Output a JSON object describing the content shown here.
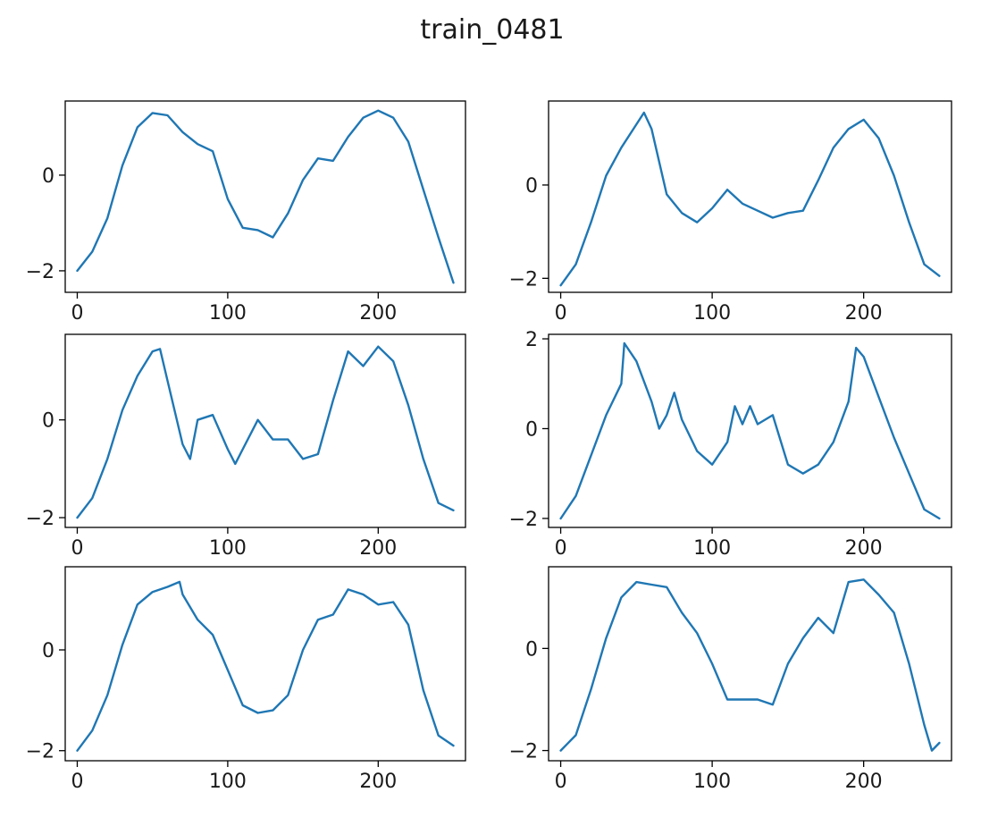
{
  "figure": {
    "suptitle": "train_0481",
    "line_color": "#1f77b4"
  },
  "chart_data": [
    {
      "type": "line",
      "xlim": [
        -8,
        258
      ],
      "ylim": [
        -2.45,
        1.55
      ],
      "xticks": [
        0,
        100,
        200
      ],
      "yticks": [
        -2,
        0
      ],
      "x": [
        0,
        10,
        20,
        30,
        40,
        50,
        60,
        70,
        80,
        90,
        100,
        110,
        120,
        130,
        140,
        150,
        160,
        170,
        180,
        190,
        200,
        210,
        220,
        230,
        240,
        250
      ],
      "y": [
        -2.0,
        -1.6,
        -0.9,
        0.2,
        1.0,
        1.3,
        1.25,
        0.9,
        0.65,
        0.5,
        -0.5,
        -1.1,
        -1.15,
        -1.3,
        -0.8,
        -0.1,
        0.35,
        0.3,
        0.8,
        1.2,
        1.35,
        1.2,
        0.7,
        -0.3,
        -1.3,
        -2.25
      ]
    },
    {
      "type": "line",
      "xlim": [
        -8,
        258
      ],
      "ylim": [
        -2.3,
        1.8
      ],
      "xticks": [
        0,
        100,
        200
      ],
      "yticks": [
        -2,
        0
      ],
      "x": [
        0,
        10,
        20,
        30,
        40,
        50,
        55,
        60,
        70,
        80,
        90,
        100,
        110,
        120,
        130,
        140,
        150,
        160,
        170,
        180,
        190,
        200,
        210,
        220,
        230,
        240,
        250
      ],
      "y": [
        -2.15,
        -1.7,
        -0.8,
        0.2,
        0.8,
        1.3,
        1.55,
        1.2,
        -0.2,
        -0.6,
        -0.8,
        -0.5,
        -0.1,
        -0.4,
        -0.55,
        -0.7,
        -0.6,
        -0.55,
        0.1,
        0.8,
        1.2,
        1.4,
        1.0,
        0.2,
        -0.8,
        -1.7,
        -1.95
      ]
    },
    {
      "type": "line",
      "xlim": [
        -8,
        258
      ],
      "ylim": [
        -2.2,
        1.75
      ],
      "xticks": [
        0,
        100,
        200
      ],
      "yticks": [
        -2,
        0
      ],
      "x": [
        0,
        10,
        20,
        30,
        40,
        50,
        55,
        60,
        70,
        75,
        80,
        90,
        100,
        105,
        110,
        120,
        130,
        140,
        150,
        160,
        170,
        180,
        190,
        200,
        210,
        220,
        230,
        240,
        250
      ],
      "y": [
        -2.0,
        -1.6,
        -0.8,
        0.2,
        0.9,
        1.4,
        1.45,
        0.8,
        -0.5,
        -0.8,
        0.0,
        0.1,
        -0.6,
        -0.9,
        -0.6,
        0.0,
        -0.4,
        -0.4,
        -0.8,
        -0.7,
        0.4,
        1.4,
        1.1,
        1.5,
        1.2,
        0.3,
        -0.8,
        -1.7,
        -1.85
      ]
    },
    {
      "type": "line",
      "xlim": [
        -8,
        258
      ],
      "ylim": [
        -2.2,
        2.1
      ],
      "xticks": [
        0,
        100,
        200
      ],
      "yticks": [
        -2,
        0,
        2
      ],
      "x": [
        0,
        10,
        20,
        30,
        40,
        42,
        50,
        60,
        65,
        70,
        75,
        80,
        90,
        100,
        110,
        115,
        120,
        125,
        130,
        140,
        150,
        160,
        170,
        180,
        190,
        195,
        200,
        210,
        220,
        230,
        240,
        250
      ],
      "y": [
        -2.0,
        -1.5,
        -0.6,
        0.3,
        1.0,
        1.9,
        1.5,
        0.6,
        0.0,
        0.3,
        0.8,
        0.2,
        -0.5,
        -0.8,
        -0.3,
        0.5,
        0.1,
        0.5,
        0.1,
        0.3,
        -0.8,
        -1.0,
        -0.8,
        -0.3,
        0.6,
        1.8,
        1.6,
        0.7,
        -0.2,
        -1.0,
        -1.8,
        -2.0
      ]
    },
    {
      "type": "line",
      "xlim": [
        -8,
        258
      ],
      "ylim": [
        -2.2,
        1.65
      ],
      "xticks": [
        0,
        100,
        200
      ],
      "yticks": [
        -2,
        0
      ],
      "x": [
        0,
        10,
        20,
        30,
        40,
        50,
        60,
        68,
        70,
        80,
        90,
        100,
        110,
        120,
        130,
        140,
        150,
        160,
        170,
        180,
        190,
        200,
        210,
        220,
        230,
        240,
        250
      ],
      "y": [
        -2.0,
        -1.6,
        -0.9,
        0.1,
        0.9,
        1.15,
        1.25,
        1.35,
        1.1,
        0.6,
        0.3,
        -0.4,
        -1.1,
        -1.25,
        -1.2,
        -0.9,
        0.0,
        0.6,
        0.7,
        1.2,
        1.1,
        0.9,
        0.95,
        0.5,
        -0.8,
        -1.7,
        -1.9
      ]
    },
    {
      "type": "line",
      "xlim": [
        -8,
        258
      ],
      "ylim": [
        -2.2,
        1.6
      ],
      "xticks": [
        0,
        100,
        200
      ],
      "yticks": [
        -2,
        0
      ],
      "x": [
        0,
        10,
        20,
        30,
        40,
        50,
        60,
        70,
        80,
        90,
        100,
        110,
        120,
        130,
        140,
        150,
        160,
        170,
        180,
        190,
        200,
        210,
        220,
        230,
        240,
        245,
        250
      ],
      "y": [
        -2.0,
        -1.7,
        -0.8,
        0.2,
        1.0,
        1.3,
        1.25,
        1.2,
        0.7,
        0.3,
        -0.3,
        -1.0,
        -1.0,
        -1.0,
        -1.1,
        -0.3,
        0.2,
        0.6,
        0.3,
        1.3,
        1.35,
        1.05,
        0.7,
        -0.3,
        -1.5,
        -2.0,
        -1.85
      ]
    }
  ]
}
